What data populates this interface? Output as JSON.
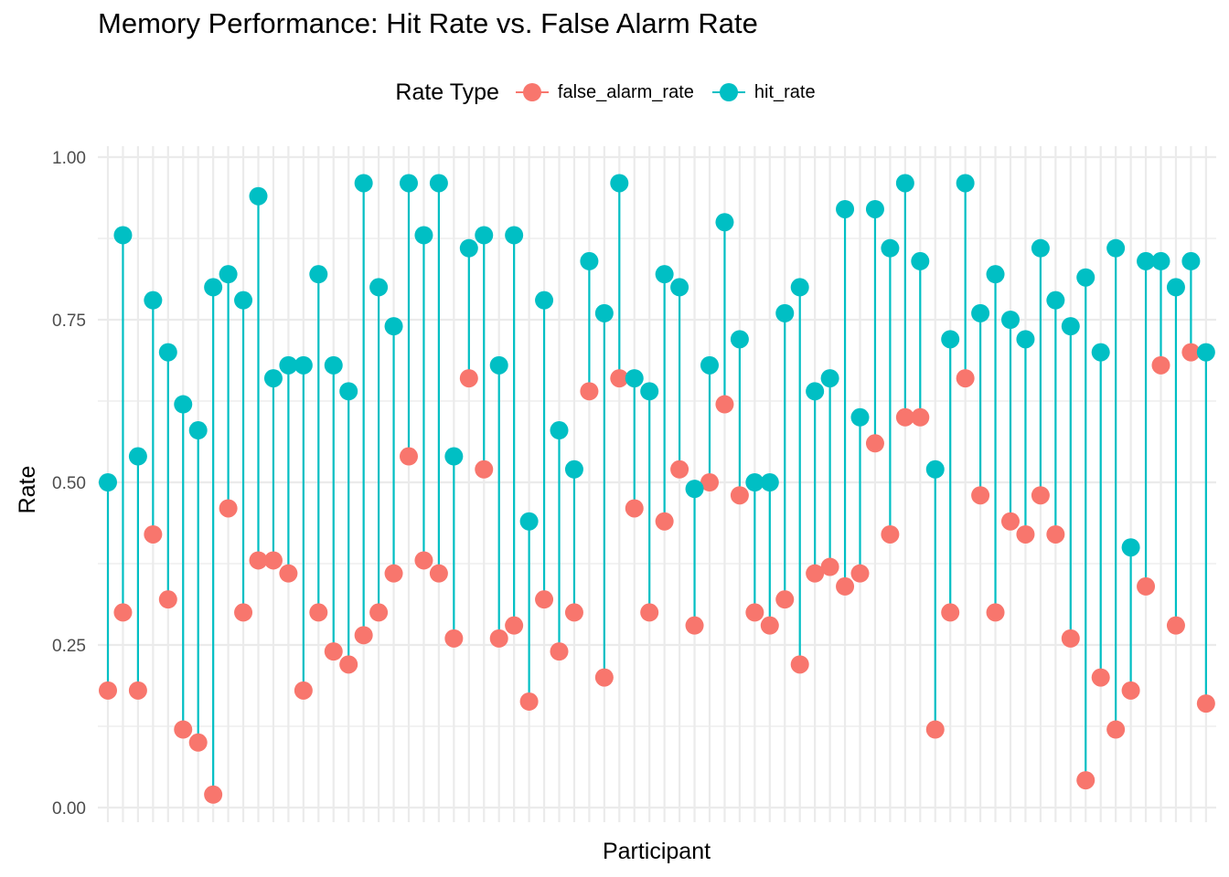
{
  "chart_data": {
    "type": "lollipop",
    "title": "Memory Performance: Hit Rate vs. False Alarm Rate",
    "xlabel": "Participant",
    "ylabel": "Rate",
    "ylim": [
      0,
      1
    ],
    "yticks": [
      "0.00",
      "0.25",
      "0.50",
      "0.75",
      "1.00"
    ],
    "legend": {
      "title": "Rate Type",
      "position": "top",
      "entries": [
        "false_alarm_rate",
        "hit_rate"
      ]
    },
    "colors": {
      "false_alarm_rate": "#F8766D",
      "hit_rate": "#00BFC4",
      "grid": "#EBEBEB"
    },
    "grid": true,
    "series": [
      {
        "name": "hit_rate",
        "values": [
          0.5,
          0.88,
          0.54,
          0.78,
          0.7,
          0.62,
          0.58,
          0.8,
          0.82,
          0.78,
          0.94,
          0.66,
          0.68,
          0.68,
          0.82,
          0.68,
          0.64,
          0.96,
          0.8,
          0.74,
          0.96,
          0.88,
          0.96,
          0.54,
          0.86,
          0.88,
          0.68,
          0.88,
          0.44,
          0.78,
          0.58,
          0.52,
          0.84,
          0.76,
          0.96,
          0.66,
          0.64,
          0.82,
          0.8,
          0.49,
          0.68,
          0.9,
          0.72,
          0.5,
          0.5,
          0.76,
          0.8,
          0.64,
          0.66,
          0.92,
          0.6,
          0.92,
          0.86,
          0.96,
          0.84,
          0.52,
          0.72,
          0.96,
          0.76,
          0.82,
          0.75,
          0.72,
          0.86,
          0.78,
          0.74,
          0.815,
          0.7,
          0.86,
          0.4,
          0.84,
          0.84,
          0.8,
          0.84,
          0.7
        ]
      },
      {
        "name": "false_alarm_rate",
        "values": [
          0.18,
          0.3,
          0.18,
          0.42,
          0.32,
          0.12,
          0.1,
          0.02,
          0.46,
          0.3,
          0.38,
          0.38,
          0.36,
          0.18,
          0.3,
          0.24,
          0.22,
          0.265,
          0.3,
          0.36,
          0.54,
          0.38,
          0.36,
          0.26,
          0.66,
          0.52,
          0.26,
          0.28,
          0.163,
          0.32,
          0.24,
          0.3,
          0.64,
          0.2,
          0.66,
          0.46,
          0.3,
          0.44,
          0.52,
          0.28,
          0.5,
          0.62,
          0.48,
          0.3,
          0.28,
          0.32,
          0.22,
          0.36,
          0.37,
          0.34,
          0.36,
          0.56,
          0.42,
          0.6,
          0.6,
          0.12,
          0.3,
          0.66,
          0.48,
          0.3,
          0.44,
          0.42,
          0.48,
          0.42,
          0.26,
          0.042,
          0.2,
          0.12,
          0.18,
          0.34,
          0.68,
          0.28,
          0.7,
          0.16
        ]
      }
    ]
  }
}
